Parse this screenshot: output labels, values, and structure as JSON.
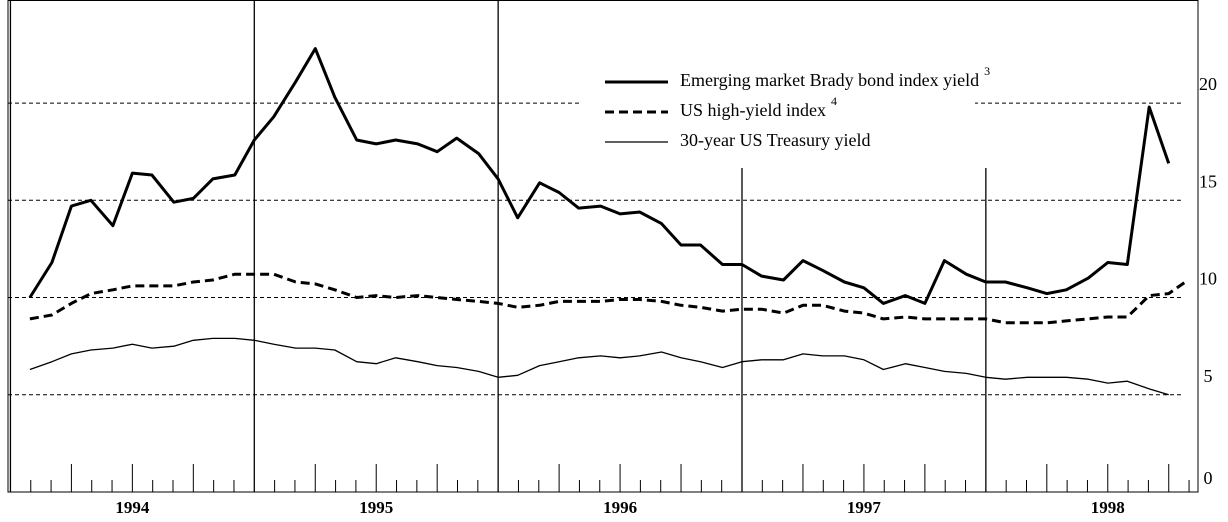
{
  "chart_data": {
    "type": "line",
    "x": [
      1994.08,
      1994.17,
      1994.25,
      1994.33,
      1994.42,
      1994.5,
      1994.58,
      1994.67,
      1994.75,
      1994.83,
      1994.92,
      1995.0,
      1995.08,
      1995.17,
      1995.25,
      1995.33,
      1995.42,
      1995.5,
      1995.58,
      1995.67,
      1995.75,
      1995.83,
      1995.92,
      1996.0,
      1996.08,
      1996.17,
      1996.25,
      1996.33,
      1996.42,
      1996.5,
      1996.58,
      1996.67,
      1996.75,
      1996.83,
      1996.92,
      1997.0,
      1997.08,
      1997.17,
      1997.25,
      1997.33,
      1997.42,
      1997.5,
      1997.58,
      1997.67,
      1997.75,
      1997.83,
      1997.92,
      1998.0,
      1998.08,
      1998.17,
      1998.25,
      1998.33,
      1998.42,
      1998.5,
      1998.58,
      1998.67,
      1998.75,
      1998.83
    ],
    "series": [
      {
        "name": "Emerging market Brady bond index yield",
        "note": "3",
        "color": "#000000",
        "width": 3,
        "dash": false,
        "values": [
          10.0,
          11.8,
          14.7,
          15.0,
          13.7,
          16.4,
          16.3,
          14.9,
          15.1,
          16.1,
          16.3,
          18.1,
          19.3,
          21.1,
          22.8,
          20.3,
          18.1,
          17.9,
          18.1,
          17.9,
          17.5,
          18.2,
          17.4,
          16.1,
          14.1,
          15.9,
          15.4,
          14.6,
          14.7,
          14.3,
          14.4,
          13.8,
          12.7,
          12.7,
          11.7,
          11.7,
          11.1,
          10.9,
          11.9,
          11.4,
          10.8,
          10.5,
          9.7,
          10.1,
          9.7,
          11.9,
          11.2,
          10.8,
          10.8,
          10.5,
          10.2,
          10.4,
          11.0,
          11.8,
          11.7,
          19.8,
          16.9,
          null
        ]
      },
      {
        "name": "US high-yield index",
        "note": "4",
        "color": "#000000",
        "width": 3,
        "dash": true,
        "values": [
          8.9,
          9.1,
          9.7,
          10.2,
          10.4,
          10.6,
          10.6,
          10.6,
          10.8,
          10.9,
          11.2,
          11.2,
          11.2,
          10.8,
          10.7,
          10.4,
          10.0,
          10.1,
          10.0,
          10.1,
          10.0,
          9.9,
          9.8,
          9.7,
          9.5,
          9.6,
          9.8,
          9.8,
          9.8,
          9.9,
          9.9,
          9.8,
          9.6,
          9.5,
          9.3,
          9.4,
          9.4,
          9.2,
          9.6,
          9.6,
          9.3,
          9.2,
          8.9,
          9.0,
          8.9,
          8.9,
          8.9,
          8.9,
          8.7,
          8.7,
          8.7,
          8.8,
          8.9,
          9.0,
          9.0,
          10.1,
          10.2,
          10.9
        ]
      },
      {
        "name": "30-year US Treasury yield",
        "color": "#000000",
        "width": 1.3,
        "dash": false,
        "values": [
          6.3,
          6.7,
          7.1,
          7.3,
          7.4,
          7.6,
          7.4,
          7.5,
          7.8,
          7.9,
          7.9,
          7.8,
          7.6,
          7.4,
          7.4,
          7.3,
          6.7,
          6.6,
          6.9,
          6.7,
          6.5,
          6.4,
          6.2,
          5.9,
          6.0,
          6.5,
          6.7,
          6.9,
          7.0,
          6.9,
          7.0,
          7.2,
          6.9,
          6.7,
          6.4,
          6.7,
          6.8,
          6.8,
          7.1,
          7.0,
          7.0,
          6.8,
          6.3,
          6.6,
          6.4,
          6.2,
          6.1,
          5.9,
          5.8,
          5.9,
          5.9,
          5.9,
          5.8,
          5.6,
          5.7,
          5.3,
          5.0,
          null
        ]
      }
    ],
    "xlim": [
      1993.99,
      1998.87
    ],
    "xticks": [
      {
        "value": 1994.5,
        "label": "1994"
      },
      {
        "value": 1995.5,
        "label": "1995"
      },
      {
        "value": 1996.5,
        "label": "1996"
      },
      {
        "value": 1997.5,
        "label": "1997"
      },
      {
        "value": 1998.5,
        "label": "1998"
      }
    ],
    "ylim": [
      0,
      25.3
    ],
    "yticks": [
      0,
      5,
      10,
      15,
      20
    ],
    "grid": true,
    "legend": "top-right"
  }
}
